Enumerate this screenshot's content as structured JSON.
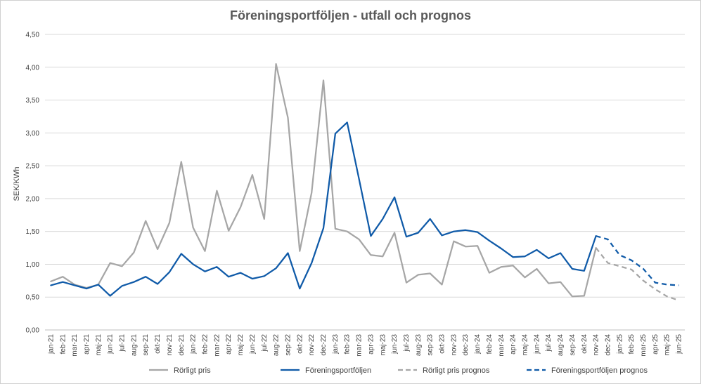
{
  "chart_data": {
    "type": "line",
    "title": "Föreningsportföljen - utfall och prognos",
    "xlabel": "",
    "ylabel": "SEK/KWh",
    "ylim": [
      0,
      4.5
    ],
    "y_ticks": [
      "0,00",
      "0,50",
      "1,00",
      "1,50",
      "2,00",
      "2,50",
      "3,00",
      "3,50",
      "4,00",
      "4,50"
    ],
    "grid": "horizontal",
    "legend_position": "bottom",
    "categories": [
      "jan-21",
      "feb-21",
      "mar-21",
      "apr-21",
      "maj-21",
      "jun-21",
      "jul-21",
      "aug-21",
      "sep-21",
      "okt-21",
      "nov-21",
      "dec-21",
      "jan-22",
      "feb-22",
      "mar-22",
      "apr-22",
      "maj-22",
      "jun-22",
      "jul-22",
      "aug-22",
      "sep-22",
      "okt-22",
      "nov-22",
      "dec-22",
      "jan-23",
      "feb-23",
      "mar-23",
      "apr-23",
      "maj-23",
      "jun-23",
      "jul-23",
      "aug-23",
      "sep-23",
      "okt-23",
      "nov-23",
      "dec-23",
      "jan-24",
      "feb-24",
      "mar-24",
      "apr-24",
      "maj-24",
      "jun-24",
      "jul-24",
      "aug-24",
      "sep-24",
      "okt-24",
      "nov-24",
      "dec-24",
      "jan-25",
      "feb-25",
      "mar-25",
      "apr-25",
      "maj-25",
      "jun-25"
    ],
    "series": [
      {
        "name": "Rörligt pris",
        "color": "#a6a6a6",
        "dash": "solid",
        "values": [
          0.74,
          0.81,
          0.69,
          0.64,
          0.69,
          1.02,
          0.97,
          1.18,
          1.66,
          1.23,
          1.63,
          2.56,
          1.56,
          1.2,
          2.12,
          1.51,
          1.87,
          2.36,
          1.69,
          4.05,
          3.23,
          1.2,
          2.09,
          3.8,
          1.54,
          1.5,
          1.38,
          1.14,
          1.12,
          1.48,
          0.72,
          0.84,
          0.86,
          0.69,
          1.35,
          1.27,
          1.28,
          0.87,
          0.96,
          0.98,
          0.8,
          0.93,
          0.71,
          0.73,
          0.51,
          0.52,
          1.25,
          null,
          null,
          null,
          null,
          null,
          null,
          null
        ]
      },
      {
        "name": "Föreningsportföljen",
        "color": "#0f5aa8",
        "dash": "solid",
        "values": [
          0.68,
          0.73,
          0.68,
          0.63,
          0.69,
          0.52,
          0.67,
          0.73,
          0.81,
          0.7,
          0.88,
          1.16,
          1.0,
          0.89,
          0.96,
          0.81,
          0.87,
          0.78,
          0.82,
          0.94,
          1.17,
          0.63,
          1.02,
          1.55,
          2.99,
          3.16,
          2.3,
          1.43,
          1.69,
          2.02,
          1.42,
          1.48,
          1.69,
          1.44,
          1.5,
          1.52,
          1.49,
          1.36,
          1.24,
          1.11,
          1.12,
          1.22,
          1.09,
          1.17,
          0.93,
          0.9,
          1.43,
          null,
          null,
          null,
          null,
          null,
          null,
          null
        ]
      },
      {
        "name": "Rörligt pris prognos",
        "color": "#a6a6a6",
        "dash": "dashed",
        "values": [
          null,
          null,
          null,
          null,
          null,
          null,
          null,
          null,
          null,
          null,
          null,
          null,
          null,
          null,
          null,
          null,
          null,
          null,
          null,
          null,
          null,
          null,
          null,
          null,
          null,
          null,
          null,
          null,
          null,
          null,
          null,
          null,
          null,
          null,
          null,
          null,
          null,
          null,
          null,
          null,
          null,
          null,
          null,
          null,
          null,
          null,
          1.25,
          1.02,
          0.97,
          0.92,
          0.75,
          0.62,
          0.51,
          0.45
        ]
      },
      {
        "name": "Föreningsportföljen prognos",
        "color": "#0f5aa8",
        "dash": "dashed",
        "values": [
          null,
          null,
          null,
          null,
          null,
          null,
          null,
          null,
          null,
          null,
          null,
          null,
          null,
          null,
          null,
          null,
          null,
          null,
          null,
          null,
          null,
          null,
          null,
          null,
          null,
          null,
          null,
          null,
          null,
          null,
          null,
          null,
          null,
          null,
          null,
          null,
          null,
          null,
          null,
          null,
          null,
          null,
          null,
          null,
          null,
          null,
          1.43,
          1.38,
          1.14,
          1.06,
          0.93,
          0.72,
          0.69,
          0.68
        ]
      }
    ]
  }
}
